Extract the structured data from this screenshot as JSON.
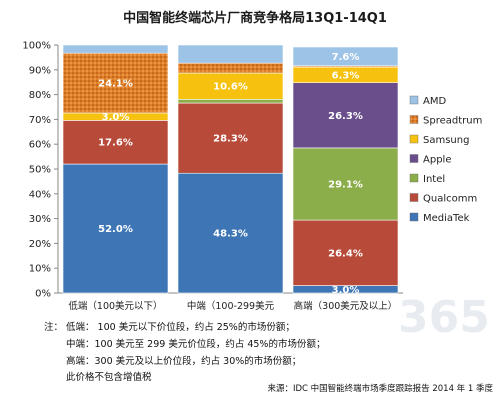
{
  "chart_data": {
    "type": "bar",
    "stacked": true,
    "title": "中国智能终端芯片厂商竞争格局13Q1-14Q1",
    "categories": [
      "低端（100美元以下）",
      "中端（100-299美元",
      "高端（300美元及以上）"
    ],
    "ylim": [
      0,
      100
    ],
    "yticks": [
      "0%",
      "10%",
      "20%",
      "30%",
      "40%",
      "50%",
      "60%",
      "70%",
      "80%",
      "90%",
      "100%"
    ],
    "grid": false,
    "legend_position": "right",
    "series": [
      {
        "name": "MediaTek",
        "color": "#3E76B5",
        "values": [
          52.0,
          48.3,
          3.0
        ],
        "labels": [
          "52.0%",
          "48.3%",
          "3.0%"
        ]
      },
      {
        "name": "Qualcomm",
        "color": "#B84A3A",
        "values": [
          17.6,
          28.3,
          26.4
        ],
        "labels": [
          "17.6%",
          "28.3%",
          "26.4%"
        ]
      },
      {
        "name": "Intel",
        "color": "#8BAE4A",
        "values": [
          0,
          1.5,
          29.1
        ],
        "labels": [
          "",
          "",
          "29.1%"
        ]
      },
      {
        "name": "Apple",
        "color": "#6A4E8C",
        "values": [
          0,
          0,
          26.3
        ],
        "labels": [
          "",
          "",
          "26.3%"
        ]
      },
      {
        "name": "Samsung",
        "color": "#F6C20F",
        "values": [
          3.0,
          10.6,
          6.3
        ],
        "labels": [
          "3.0%",
          "10.6%",
          "6.3%"
        ]
      },
      {
        "name": "Spreadtrum",
        "color": "#E07E26",
        "values": [
          24.1,
          4.0,
          0.5
        ],
        "labels": [
          "24.1%",
          "",
          ""
        ]
      },
      {
        "name": "AMD",
        "color": "#9DC3E6",
        "values": [
          3.3,
          7.3,
          7.6
        ],
        "labels": [
          "",
          "",
          "7.6%"
        ]
      }
    ]
  },
  "notes": [
    "注：  低端：  100 美元以下价位段，约占 25%的市场份额；",
    "中端：100 美元至 299 美元价位段，约占 45%的市场份额；",
    "高端：300 美元及以上价位段，约占 30%的市场份额；",
    "此价格不包含增值税"
  ],
  "source": "来源：IDC 中国智能终端市场季度跟踪报告 2014 年 1 季度",
  "watermark": "365 PR"
}
